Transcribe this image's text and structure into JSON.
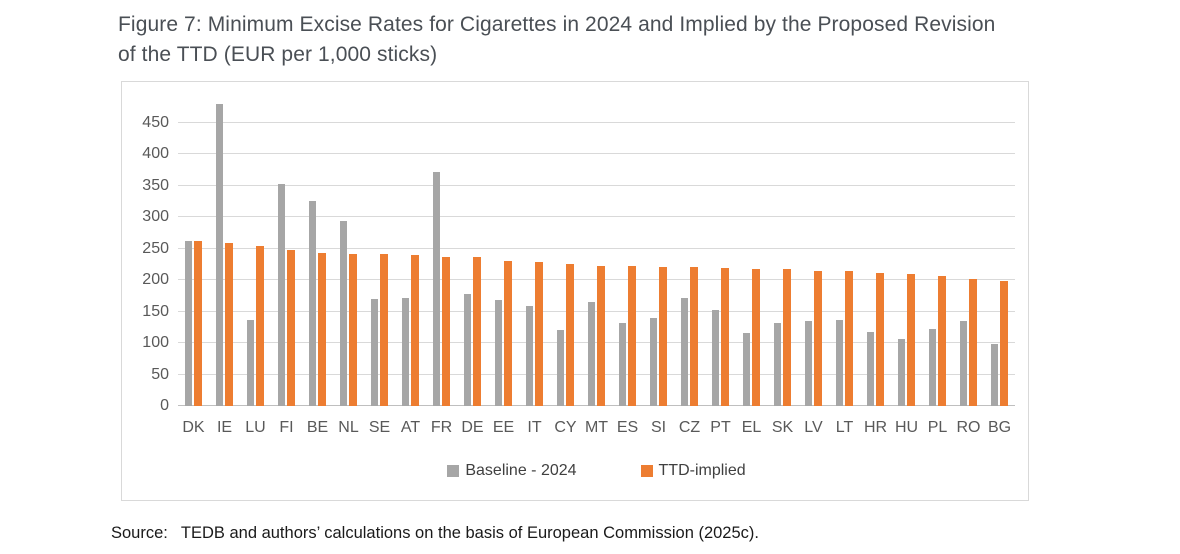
{
  "header": {
    "line1": "Figure 7: Minimum Excise Rates for Cigarettes in 2024 and Implied by the Proposed Revision",
    "line2": "of the TTD (EUR per 1,000 sticks)"
  },
  "source": {
    "label": "Source:",
    "text": "TEDB and authors’ calculations on the basis of European Commission (2025c)."
  },
  "chart_data": {
    "type": "bar",
    "title": "Figure 7: Minimum Excise Rates for Cigarettes in 2024 and Implied by the Proposed Revision of the TTD (EUR per 1,000 sticks)",
    "unit": "EUR per 1,000 sticks",
    "xlabel": "",
    "ylabel": "",
    "categories": [
      "DK",
      "IE",
      "LU",
      "FI",
      "BE",
      "NL",
      "SE",
      "AT",
      "FR",
      "DE",
      "EE",
      "IT",
      "CY",
      "MT",
      "ES",
      "SI",
      "CZ",
      "PT",
      "EL",
      "SK",
      "LV",
      "LT",
      "HR",
      "HU",
      "PL",
      "RO",
      "BG"
    ],
    "series": [
      {
        "name": "Baseline - 2024",
        "color": "#A6A6A6",
        "values": [
          262,
          480,
          136,
          353,
          326,
          293,
          170,
          171,
          371,
          178,
          168,
          159,
          121,
          165,
          131,
          140,
          172,
          153,
          116,
          131,
          135,
          137,
          117,
          107,
          122,
          135,
          99
        ]
      },
      {
        "name": "TTD-implied",
        "color": "#ED7D31",
        "values": [
          262,
          258,
          254,
          247,
          243,
          242,
          241,
          239,
          237,
          236,
          230,
          228,
          225,
          223,
          222,
          221,
          220,
          219,
          218,
          217,
          215,
          214,
          211,
          209,
          207,
          201,
          199
        ]
      }
    ],
    "ylim": [
      0,
      500
    ],
    "yticks": [
      0,
      50,
      100,
      150,
      200,
      250,
      300,
      350,
      400,
      450
    ],
    "grid": true,
    "legend_position": "bottom"
  },
  "colors": {
    "baseline_series": "#A6A6A6",
    "ttd_series": "#ED7D31",
    "gridline": "#D9D9D9",
    "axis_line": "#BFBFBF",
    "chart_border": "#D9D9D9",
    "axis_text": "#595959",
    "title_text": "#4A4F55",
    "source_text": "#1A1A1A"
  }
}
